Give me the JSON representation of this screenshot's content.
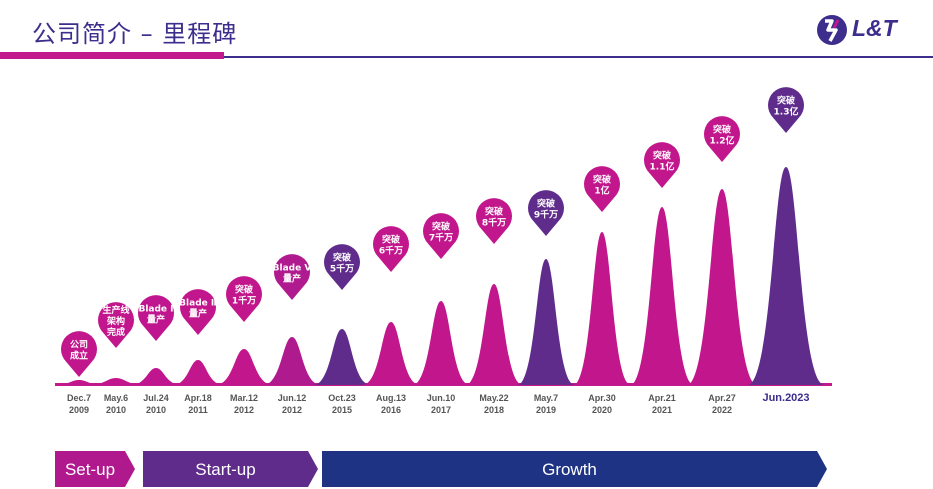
{
  "header": {
    "title": "公司简介 – 里程碑",
    "logo_text": "L&T"
  },
  "colors": {
    "magenta": "#c2168c",
    "purple": "#5f2c8c",
    "navy": "#1f3384",
    "accent": "#c21a8c",
    "title": "#3d2d8c"
  },
  "milestones": [
    {
      "date": [
        "Dec.7",
        "2009"
      ],
      "label": [
        "公司",
        "成立"
      ],
      "color": "#c2168c"
    },
    {
      "date": [
        "May.6",
        "2010"
      ],
      "label": [
        "生产线",
        "架构",
        "完成"
      ],
      "color": "#c2168c"
    },
    {
      "date": [
        "Jul.24",
        "2010"
      ],
      "label": [
        "Blade Ⅰ",
        "量产"
      ],
      "color": "#bf1690"
    },
    {
      "date": [
        "Apr.18",
        "2011"
      ],
      "label": [
        "Blade Ⅱ",
        "量产"
      ],
      "color": "#c2168c"
    },
    {
      "date": [
        "Mar.12",
        "2012"
      ],
      "label": [
        "突破",
        "1千万"
      ],
      "color": "#c2168c"
    },
    {
      "date": [
        "Jun.12",
        "2012"
      ],
      "label": [
        "Blade V",
        "量产"
      ],
      "color": "#b01a8f"
    },
    {
      "date": [
        "Oct.23",
        "2015"
      ],
      "label": [
        "突破",
        "5千万"
      ],
      "color": "#5f2c8c"
    },
    {
      "date": [
        "Aug.13",
        "2016"
      ],
      "label": [
        "突破",
        "6千万"
      ],
      "color": "#c2168c"
    },
    {
      "date": [
        "Jun.10",
        "2017"
      ],
      "label": [
        "突破",
        "7千万"
      ],
      "color": "#c2168c"
    },
    {
      "date": [
        "May.22",
        "2018"
      ],
      "label": [
        "突破",
        "8千万"
      ],
      "color": "#c2168c"
    },
    {
      "date": [
        "May.7",
        "2019"
      ],
      "label": [
        "突破",
        "9千万"
      ],
      "color": "#5f2c8c"
    },
    {
      "date": [
        "Apr.30",
        "2020"
      ],
      "label": [
        "突破",
        "1亿"
      ],
      "color": "#c2168c"
    },
    {
      "date": [
        "Apr.21",
        "2021"
      ],
      "label": [
        "突破",
        "1.1亿"
      ],
      "color": "#c2168c"
    },
    {
      "date": [
        "Apr.27",
        "2022"
      ],
      "label": [
        "突破",
        "1.2亿"
      ],
      "color": "#c2168c"
    },
    {
      "date": [
        "Jun.2023"
      ],
      "label": [
        "突破",
        "1.3亿"
      ],
      "color": "#5f2c8c",
      "highlight": true
    }
  ],
  "phases": [
    {
      "label": "Set-up",
      "color": "#b0198d"
    },
    {
      "label": "Start-up",
      "color": "#5f2c8c"
    },
    {
      "label": "Growth",
      "color": "#1f3384"
    }
  ]
}
